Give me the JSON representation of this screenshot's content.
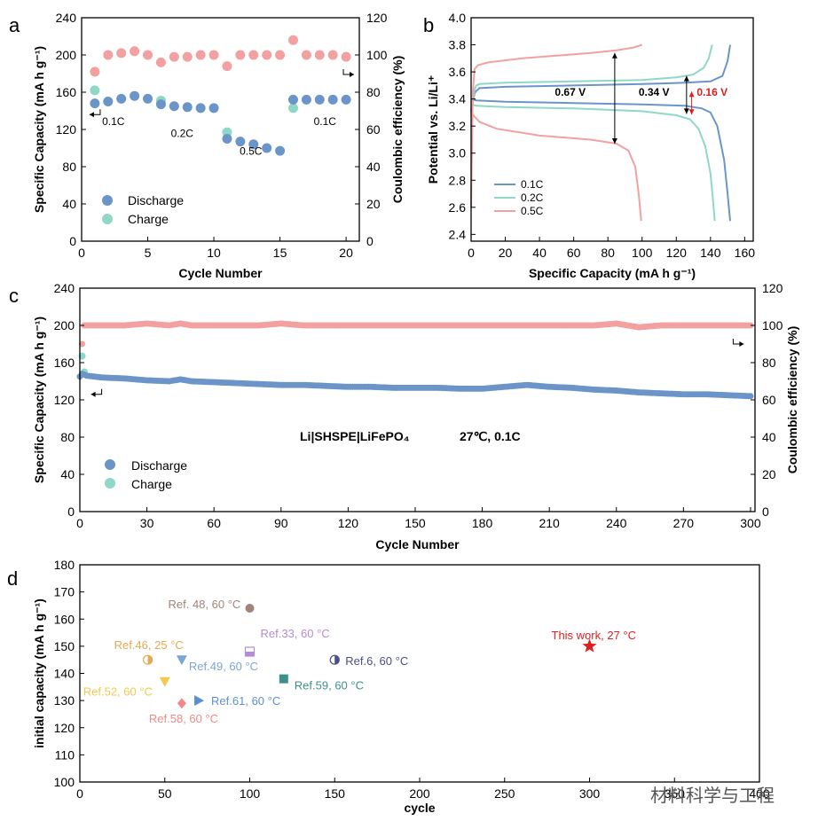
{
  "watermark": "材料科学与工程",
  "chart_data": [
    {
      "id": "a",
      "panel_label": "a",
      "type": "scatter",
      "xlabel": "Cycle Number",
      "ylabel": "Specific Capacity (mA h g⁻¹)",
      "y2label": "Coulombic efficiency (%)",
      "xlim": [
        0,
        21
      ],
      "ylim": [
        0,
        240
      ],
      "y2lim": [
        0,
        120
      ],
      "xticks": [
        0,
        5,
        10,
        15,
        20
      ],
      "yticks": [
        0,
        40,
        80,
        120,
        160,
        200,
        240
      ],
      "y2ticks": [
        0,
        20,
        40,
        60,
        80,
        100,
        120
      ],
      "legend": [
        "Discharge",
        "Charge"
      ],
      "legend_position": "bottom-left",
      "colors": {
        "discharge": "#6b94c9",
        "charge": "#8fd8c8",
        "ce": "#f2a0a0"
      },
      "rate_labels": [
        {
          "text": "0.1C",
          "x": 2.4,
          "y": 125
        },
        {
          "text": "0.2C",
          "x": 7.6,
          "y": 112
        },
        {
          "text": "0.5C",
          "x": 12.8,
          "y": 93
        },
        {
          "text": "0.1C",
          "x": 18.4,
          "y": 125
        }
      ],
      "series": [
        {
          "name": "Discharge",
          "axis": "left",
          "x": [
            1,
            2,
            3,
            4,
            5,
            6,
            7,
            8,
            9,
            10,
            11,
            12,
            13,
            14,
            15,
            16,
            17,
            18,
            19,
            20
          ],
          "y": [
            148,
            150,
            153,
            156,
            153,
            147,
            145,
            144,
            143,
            143,
            110,
            107,
            104,
            100,
            97,
            152,
            152,
            152,
            152,
            152
          ]
        },
        {
          "name": "Charge",
          "axis": "left",
          "x": [
            1,
            6,
            11,
            16
          ],
          "y": [
            162,
            151,
            117,
            143
          ]
        },
        {
          "name": "Coulombic efficiency",
          "axis": "right",
          "x": [
            1,
            2,
            3,
            4,
            5,
            6,
            7,
            8,
            9,
            10,
            11,
            12,
            13,
            14,
            15,
            16,
            17,
            18,
            19,
            20
          ],
          "y": [
            91,
            100,
            101,
            102,
            100,
            96,
            99,
            99,
            100,
            100,
            94,
            100,
            100,
            100,
            100,
            108,
            100,
            100,
            100,
            99
          ]
        }
      ]
    },
    {
      "id": "b",
      "panel_label": "b",
      "type": "line",
      "xlabel": "Specific Capacity (mA h g⁻¹)",
      "ylabel": "Potential vs. Li/Li⁺",
      "xlim": [
        0,
        165
      ],
      "ylim": [
        2.35,
        4.0
      ],
      "xticks": [
        0,
        20,
        40,
        60,
        80,
        100,
        120,
        140,
        160
      ],
      "yticks": [
        2.4,
        2.6,
        2.8,
        3.0,
        3.2,
        3.4,
        3.6,
        3.8,
        4.0
      ],
      "legend": [
        "0.1C",
        "0.2C",
        "0.5C"
      ],
      "legend_position": "bottom-center",
      "colors": {
        "0.1C": "#6b94c9",
        "0.2C": "#8fd8c8",
        "0.5C": "#f2a0a0"
      },
      "annotations": [
        {
          "text": "0.67 V",
          "x": 58,
          "y": 3.45,
          "color": "#000000"
        },
        {
          "text": "0.34 V",
          "x": 107,
          "y": 3.45,
          "color": "#000000"
        },
        {
          "text": "0.16 V",
          "x": 141,
          "y": 3.45,
          "color": "#d42020"
        }
      ],
      "series": [
        {
          "name": "0.1C",
          "charge": {
            "x": [
              0,
              2,
              3,
              5,
              20,
              60,
              100,
              125,
              140,
              147,
              150,
              151.5
            ],
            "y": [
              3.32,
              3.44,
              3.46,
              3.48,
              3.49,
              3.5,
              3.51,
              3.52,
              3.53,
              3.57,
              3.68,
              3.8
            ]
          },
          "discharge": {
            "x": [
              0,
              3,
              20,
              60,
              100,
              125,
              135,
              140,
              144,
              148,
              150,
              151.5
            ],
            "y": [
              3.4,
              3.39,
              3.38,
              3.37,
              3.36,
              3.35,
              3.33,
              3.3,
              3.2,
              2.95,
              2.7,
              2.5
            ]
          }
        },
        {
          "name": "0.2C",
          "charge": {
            "x": [
              0,
              2,
              3,
              5,
              20,
              60,
              100,
              120,
              130,
              136,
              139,
              141
            ],
            "y": [
              3.3,
              3.47,
              3.5,
              3.51,
              3.52,
              3.53,
              3.54,
              3.56,
              3.58,
              3.63,
              3.7,
              3.8
            ]
          },
          "discharge": {
            "x": [
              0,
              3,
              20,
              60,
              100,
              120,
              128,
              133,
              137,
              140,
              141.5,
              142.5
            ],
            "y": [
              3.36,
              3.35,
              3.34,
              3.33,
              3.31,
              3.28,
              3.25,
              3.18,
              3.05,
              2.85,
              2.65,
              2.5
            ]
          }
        },
        {
          "name": "0.5C",
          "charge": {
            "x": [
              0,
              1,
              2,
              4,
              10,
              30,
              50,
              70,
              85,
              95,
              100
            ],
            "y": [
              2.6,
              3.45,
              3.62,
              3.65,
              3.67,
              3.7,
              3.72,
              3.74,
              3.76,
              3.78,
              3.8
            ]
          },
          "discharge": {
            "x": [
              0,
              2,
              5,
              15,
              40,
              70,
              85,
              92,
              96,
              98,
              99.5
            ],
            "y": [
              3.3,
              3.27,
              3.23,
              3.18,
              3.13,
              3.1,
              3.07,
              3.02,
              2.9,
              2.7,
              2.5
            ]
          }
        }
      ]
    },
    {
      "id": "c",
      "panel_label": "c",
      "type": "scatter",
      "title": "Li|SHSPE|LiFePO₄",
      "subtitle": "27℃, 0.1C",
      "xlabel": "Cycle Number",
      "ylabel": "Specific Capacity (mA h g⁻¹)",
      "y2label": "Coulombic efficiency (%)",
      "xlim": [
        0,
        302
      ],
      "ylim": [
        0,
        240
      ],
      "y2lim": [
        0,
        120
      ],
      "xticks": [
        0,
        30,
        60,
        90,
        120,
        150,
        180,
        210,
        240,
        270,
        300
      ],
      "yticks": [
        0,
        40,
        80,
        120,
        160,
        200,
        240
      ],
      "y2ticks": [
        0,
        20,
        40,
        60,
        80,
        100,
        120
      ],
      "legend": [
        "Discharge",
        "Charge"
      ],
      "legend_position": "bottom-left",
      "colors": {
        "discharge": "#6b94c9",
        "charge": "#8fd8c8",
        "ce": "#f2a0a0"
      },
      "series": [
        {
          "name": "Discharge",
          "axis": "left",
          "x": [
            0,
            1,
            3,
            10,
            20,
            30,
            40,
            45,
            50,
            60,
            70,
            80,
            90,
            100,
            110,
            120,
            130,
            140,
            150,
            160,
            170,
            180,
            190,
            200,
            210,
            220,
            230,
            240,
            250,
            260,
            270,
            280,
            290,
            300
          ],
          "y": [
            145,
            148,
            146,
            144,
            143,
            141,
            140,
            142,
            140,
            139,
            138,
            137,
            136,
            136,
            135,
            134,
            134,
            133,
            133,
            133,
            132,
            132,
            134,
            136,
            134,
            133,
            131,
            130,
            128,
            127,
            126,
            126,
            125,
            124
          ]
        },
        {
          "name": "Charge",
          "axis": "left",
          "x": [
            1,
            2
          ],
          "y": [
            167,
            150
          ]
        },
        {
          "name": "Coulombic efficiency",
          "axis": "right",
          "x": [
            1,
            2,
            5,
            10,
            20,
            30,
            40,
            45,
            50,
            60,
            70,
            80,
            90,
            100,
            110,
            120,
            130,
            140,
            150,
            160,
            170,
            180,
            190,
            200,
            210,
            220,
            230,
            240,
            250,
            260,
            270,
            280,
            290,
            300
          ],
          "y": [
            90,
            100,
            100,
            100,
            100,
            101,
            100,
            101,
            100,
            100,
            100,
            100,
            101,
            100,
            100,
            100,
            100,
            100,
            100,
            100,
            100,
            100,
            100,
            100,
            100,
            100,
            100,
            101,
            99,
            100,
            100,
            100,
            100,
            100
          ]
        }
      ]
    },
    {
      "id": "d",
      "panel_label": "d",
      "type": "scatter",
      "xlabel": "cycle",
      "ylabel": "initial capacity (mA h g⁻¹)",
      "xlim": [
        0,
        400
      ],
      "ylim": [
        100,
        180
      ],
      "xticks": [
        0,
        50,
        100,
        150,
        200,
        250,
        300,
        350,
        400
      ],
      "yticks": [
        100,
        110,
        120,
        130,
        140,
        150,
        160,
        170,
        180
      ],
      "points": [
        {
          "label": "Ref. 48, 60 °C",
          "x": 100,
          "y": 164,
          "color": "#a0847a",
          "marker": "circle"
        },
        {
          "label": "Ref.46, 25 °C",
          "x": 40,
          "y": 145,
          "color": "#e6a852",
          "marker": "half-circle"
        },
        {
          "label": "Ref.33, 60 °C",
          "x": 100,
          "y": 148,
          "color": "#b48bd4",
          "marker": "half-square"
        },
        {
          "label": "Ref.49, 60 °C",
          "x": 60,
          "y": 145,
          "color": "#7aa6d8",
          "marker": "triangle-down"
        },
        {
          "label": "Ref.6, 60 °C",
          "x": 150,
          "y": 145,
          "color": "#4a4f8a",
          "marker": "half-circle"
        },
        {
          "label": "Ref.59, 60 °C",
          "x": 120,
          "y": 138,
          "color": "#3f8f8a",
          "marker": "square"
        },
        {
          "label": "Ref.52, 60 °C",
          "x": 50,
          "y": 137,
          "color": "#f2c94c",
          "marker": "triangle-down"
        },
        {
          "label": "Ref.61, 60 °C",
          "x": 70,
          "y": 130,
          "color": "#5b8fd4",
          "marker": "triangle-right"
        },
        {
          "label": "Ref.58, 60 °C",
          "x": 60,
          "y": 129,
          "color": "#f08a8a",
          "marker": "diamond"
        },
        {
          "label": "This work, 27 °C",
          "x": 300,
          "y": 150,
          "color": "#e02020",
          "marker": "star"
        }
      ]
    }
  ]
}
